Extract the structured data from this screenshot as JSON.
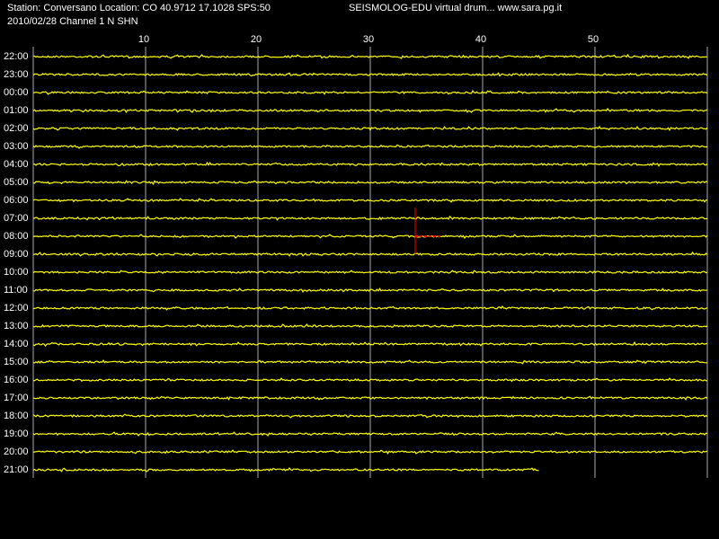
{
  "header": {
    "station": "Station: Conversano Location: CO 40.9712 17.1028 SPS:50",
    "program": "SEISMOLOG-EDU virtual drum... www.sara.pg.it",
    "date_channel": "2010/02/28  Channel 1 N SHN"
  },
  "drum": {
    "xlim": [
      0,
      60
    ],
    "xticks": [
      10,
      20,
      30,
      40,
      50
    ],
    "rows": [
      "22:00",
      "23:00",
      "00:00",
      "01:00",
      "02:00",
      "03:00",
      "04:00",
      "05:00",
      "06:00",
      "07:00",
      "08:00",
      "09:00",
      "10:00",
      "11:00",
      "12:00",
      "13:00",
      "14:00",
      "15:00",
      "16:00",
      "17:00",
      "18:00",
      "19:00",
      "20:00",
      "21:00"
    ],
    "last_trace_end": 45,
    "marker": {
      "row": 10,
      "minute": 34
    }
  }
}
